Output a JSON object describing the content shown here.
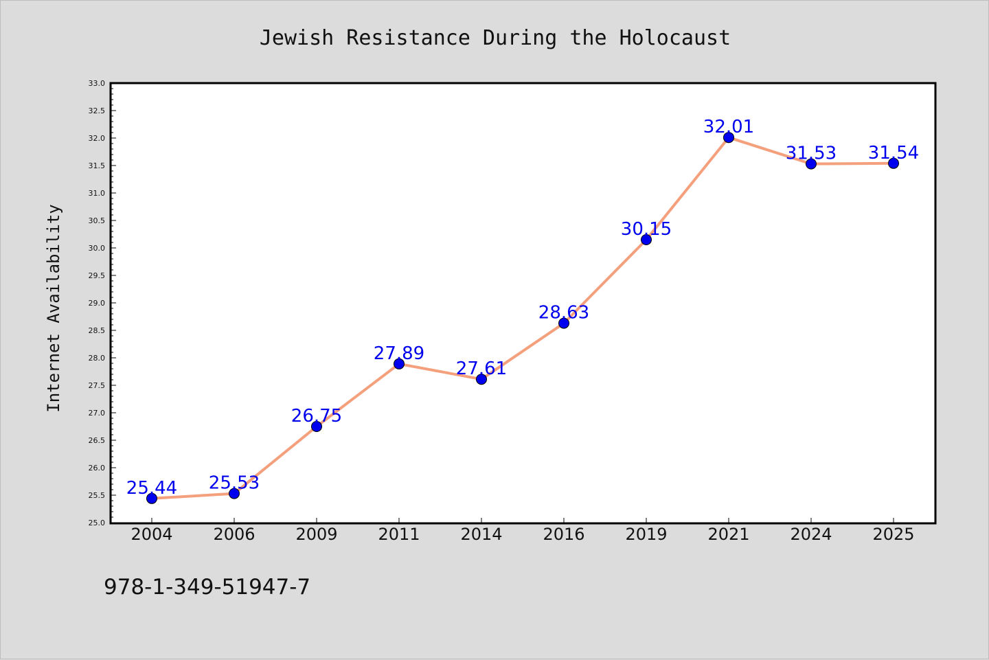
{
  "chart_data": {
    "type": "line",
    "title": "Jewish Resistance During the Holocaust",
    "xlabel": "",
    "ylabel": "Internet Availability",
    "categories": [
      "2004",
      "2006",
      "2009",
      "2011",
      "2014",
      "2016",
      "2019",
      "2021",
      "2024",
      "2025"
    ],
    "series": [
      {
        "values": [
          25.44,
          25.53,
          26.75,
          27.89,
          27.61,
          28.63,
          30.15,
          32.01,
          31.53,
          31.54
        ],
        "line_color": "#f4a07c",
        "marker_color": "#0000ee",
        "label_color": "#0000ee"
      }
    ],
    "ylim": [
      25.0,
      33.0
    ],
    "yticks": [
      "25.0",
      "25.5",
      "26.0",
      "26.5",
      "27.0",
      "27.5",
      "28.0",
      "28.5",
      "29.0",
      "29.5",
      "30.0",
      "30.5",
      "31.0",
      "31.5",
      "32.0",
      "32.5",
      "33.0"
    ],
    "grid": false,
    "legend": "none"
  },
  "footer": {
    "code": "978-1-349-51947-7"
  },
  "colors": {
    "background": "#dcdcdc",
    "plot_background": "#ffffff",
    "axis": "#000000"
  }
}
